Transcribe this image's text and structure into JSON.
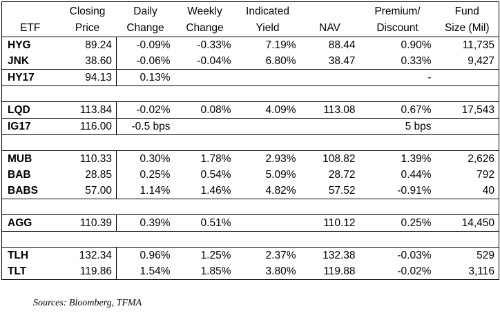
{
  "columns": {
    "etf": "ETF",
    "closing_price": [
      "Closing",
      "Price"
    ],
    "daily_change": [
      "Daily",
      "Change"
    ],
    "weekly_change": [
      "Weekly",
      "Change"
    ],
    "indicated_yield": [
      "Indicated",
      "Yield"
    ],
    "nav": "NAV",
    "premium_discount": [
      "Premium/",
      "Discount"
    ],
    "fund_size": [
      "Fund",
      "Size (Mil)"
    ]
  },
  "groups": [
    {
      "rows": [
        {
          "etf": "HYG",
          "closing_price": "89.24",
          "daily_change": "-0.09%",
          "weekly_change": "-0.33%",
          "indicated_yield": "7.19%",
          "nav": "88.44",
          "premium_discount": "0.90%",
          "fund_size": "11,735"
        },
        {
          "etf": "JNK",
          "closing_price": "38.60",
          "daily_change": "-0.06%",
          "weekly_change": "-0.04%",
          "indicated_yield": "6.80%",
          "nav": "38.47",
          "premium_discount": "0.33%",
          "fund_size": "9,427"
        }
      ]
    },
    {
      "rows": [
        {
          "etf": "HY17",
          "closing_price": "94.13",
          "daily_change": "0.13%",
          "weekly_change": "",
          "indicated_yield": "",
          "nav": "",
          "premium_discount": "-",
          "fund_size": ""
        }
      ]
    },
    {
      "rows": [
        {
          "etf": "LQD",
          "closing_price": "113.84",
          "daily_change": "-0.02%",
          "weekly_change": "0.08%",
          "indicated_yield": "4.09%",
          "nav": "113.08",
          "premium_discount": "0.67%",
          "fund_size": "17,543"
        }
      ]
    },
    {
      "rows": [
        {
          "etf": "IG17",
          "closing_price": "116.00",
          "daily_change": "-0.5 bps",
          "weekly_change": "",
          "indicated_yield": "",
          "nav": "",
          "premium_discount": "5 bps",
          "fund_size": ""
        }
      ]
    },
    {
      "rows": [
        {
          "etf": "MUB",
          "closing_price": "110.33",
          "daily_change": "0.30%",
          "weekly_change": "1.78%",
          "indicated_yield": "2.93%",
          "nav": "108.82",
          "premium_discount": "1.39%",
          "fund_size": "2,626"
        },
        {
          "etf": "BAB",
          "closing_price": "28.85",
          "daily_change": "0.25%",
          "weekly_change": "0.54%",
          "indicated_yield": "5.09%",
          "nav": "28.72",
          "premium_discount": "0.44%",
          "fund_size": "792"
        },
        {
          "etf": "BABS",
          "closing_price": "57.00",
          "daily_change": "1.14%",
          "weekly_change": "1.46%",
          "indicated_yield": "4.82%",
          "nav": "57.52",
          "premium_discount": "-0.91%",
          "fund_size": "40"
        }
      ]
    },
    {
      "rows": [
        {
          "etf": "AGG",
          "closing_price": "110.39",
          "daily_change": "0.39%",
          "weekly_change": "0.51%",
          "indicated_yield": "",
          "nav": "110.12",
          "premium_discount": "0.25%",
          "fund_size": "14,450"
        }
      ]
    },
    {
      "rows": [
        {
          "etf": "TLH",
          "closing_price": "132.34",
          "daily_change": "0.96%",
          "weekly_change": "1.25%",
          "indicated_yield": "2.37%",
          "nav": "132.38",
          "premium_discount": "-0.03%",
          "fund_size": "529"
        },
        {
          "etf": "TLT",
          "closing_price": "119.86",
          "daily_change": "1.54%",
          "weekly_change": "1.85%",
          "indicated_yield": "3.80%",
          "nav": "119.88",
          "premium_discount": "-0.02%",
          "fund_size": "3,116"
        }
      ]
    }
  ],
  "spacer_after_groups": [
    1,
    3,
    4,
    5
  ],
  "footer": {
    "sources": "Sources: Bloomberg, TFMA"
  }
}
